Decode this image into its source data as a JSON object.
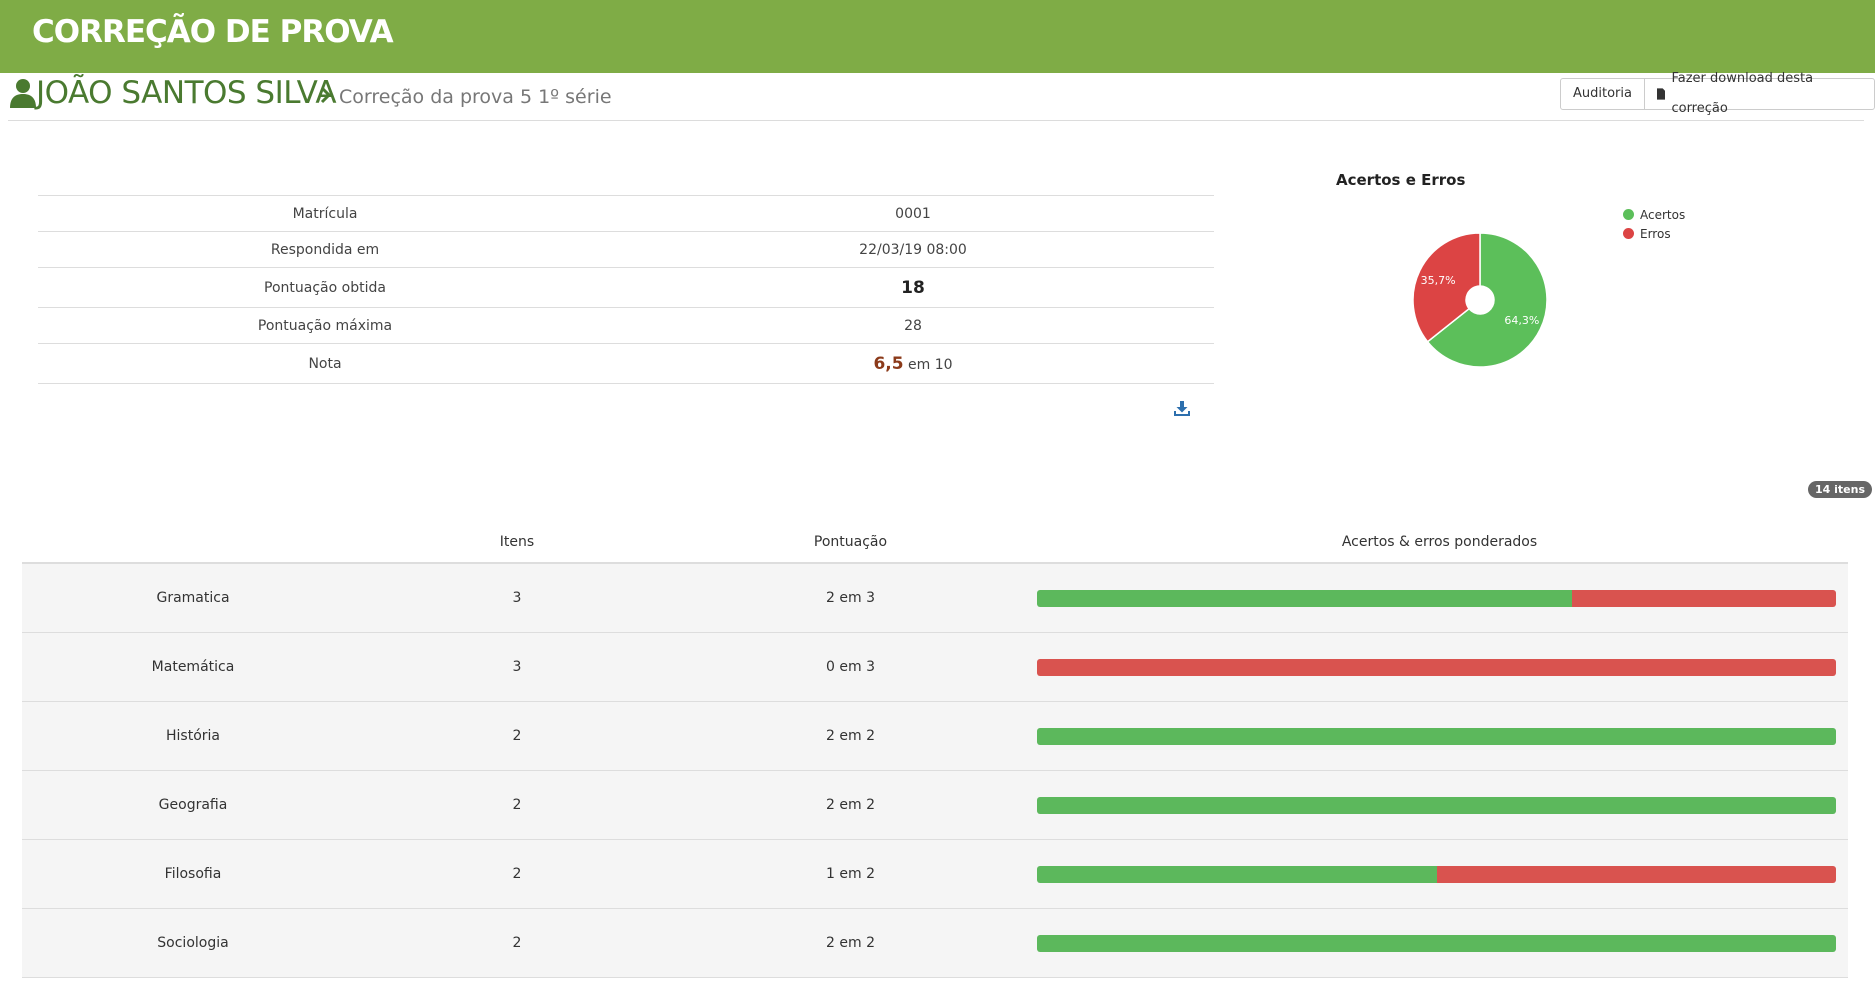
{
  "page": {
    "title": "CORREÇÃO DE PROVA"
  },
  "header": {
    "student_name": "JOÃO SANTOS SILVA",
    "breadcrumb": "Correção da prova 5 1º série",
    "audit_label": "Auditoria",
    "download_label": "Fazer download desta correção"
  },
  "info": {
    "rows": [
      {
        "label": "Matrícula",
        "value": "0001"
      },
      {
        "label": "Respondida em",
        "value": "22/03/19 08:00"
      },
      {
        "label": "Pontuação obtida",
        "value": "18"
      },
      {
        "label": "Pontuação máxima",
        "value": "28"
      },
      {
        "label": "Nota",
        "value": "6,5",
        "suffix": "em 10"
      }
    ]
  },
  "chart_data": {
    "type": "pie",
    "title": "Acertos e Erros",
    "labels": [
      "Acertos",
      "Erros"
    ],
    "values": [
      64.3,
      35.7
    ],
    "data_labels": [
      "64,3%",
      "35,7%"
    ],
    "colors": [
      "#5cbf5a",
      "#dc4444"
    ],
    "legend_placement": "right"
  },
  "subjects": {
    "count_badge": "14 itens",
    "headers": {
      "items": "Itens",
      "score": "Pontuação",
      "weighted": "Acertos & erros ponderados"
    },
    "rows": [
      {
        "name": "Gramatica",
        "items": "3",
        "score": "2 em 3",
        "correct_fraction": 0.67
      },
      {
        "name": "Matemática",
        "items": "3",
        "score": "0 em 3",
        "correct_fraction": 0.0
      },
      {
        "name": "História",
        "items": "2",
        "score": "2 em 2",
        "correct_fraction": 1.0
      },
      {
        "name": "Geografia",
        "items": "2",
        "score": "2 em 2",
        "correct_fraction": 1.0
      },
      {
        "name": "Filosofia",
        "items": "2",
        "score": "1 em 2",
        "correct_fraction": 0.5
      },
      {
        "name": "Sociologia",
        "items": "2",
        "score": "2 em 2",
        "correct_fraction": 1.0
      }
    ]
  },
  "colors": {
    "banner": "#7fac46",
    "name": "#4a7a30",
    "ok": "#5cb85c",
    "err": "#d9534f"
  },
  "icons": {
    "user": "user-icon",
    "chevron": "chevron-right-icon",
    "document": "document-icon",
    "download": "download-icon"
  }
}
